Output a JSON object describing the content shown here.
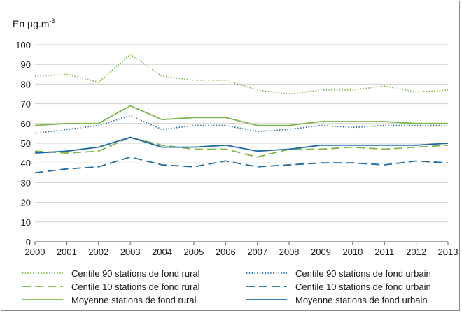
{
  "chart_data": {
    "type": "line",
    "ylabel_prefix": "En µg.m",
    "ylabel_exponent": "-3",
    "ylim": [
      0,
      100
    ],
    "yticks": [
      "0",
      "10",
      "20",
      "30",
      "40",
      "50",
      "60",
      "70",
      "80",
      "90",
      "100"
    ],
    "x": [
      "2000",
      "2001",
      "2002",
      "2003",
      "2004",
      "2005",
      "2006",
      "2007",
      "2008",
      "2009",
      "2010",
      "2011",
      "2012",
      "2013"
    ],
    "grid": "horizontal",
    "legend_placement": "bottom",
    "series": [
      {
        "name": "Centile 90 stations de fond rural",
        "color": "#7ab648",
        "dash": "dotted",
        "values": [
          84,
          85,
          81,
          95,
          84,
          82,
          82,
          77,
          75,
          77,
          77,
          79,
          76,
          77
        ]
      },
      {
        "name": "Centile 90 stations de fond urbain",
        "color": "#1f6aa5",
        "dash": "dotted",
        "values": [
          55,
          57,
          59,
          64,
          57,
          59,
          59,
          56,
          57,
          59,
          58,
          59,
          59,
          59
        ]
      },
      {
        "name": "Centile 10 stations de fond rural",
        "color": "#7ab648",
        "dash": "dashed",
        "values": [
          46,
          45,
          46,
          53,
          49,
          47,
          47,
          43,
          47,
          47,
          48,
          47,
          48,
          49
        ]
      },
      {
        "name": "Centile 10 stations de fond urbain",
        "color": "#1f6aa5",
        "dash": "dashed",
        "values": [
          35,
          37,
          38,
          43,
          39,
          38,
          41,
          38,
          39,
          40,
          40,
          39,
          41,
          40
        ]
      },
      {
        "name": "Moyenne stations de fond rural",
        "color": "#7ab648",
        "dash": "solid",
        "values": [
          59,
          60,
          60,
          69,
          62,
          63,
          63,
          59,
          59,
          61,
          61,
          61,
          60,
          60
        ]
      },
      {
        "name": "Moyenne stations de fond urbain",
        "color": "#1f6aa5",
        "dash": "solid",
        "values": [
          45,
          46,
          48,
          53,
          48,
          48,
          49,
          46,
          47,
          49,
          49,
          49,
          49,
          50
        ]
      }
    ]
  }
}
